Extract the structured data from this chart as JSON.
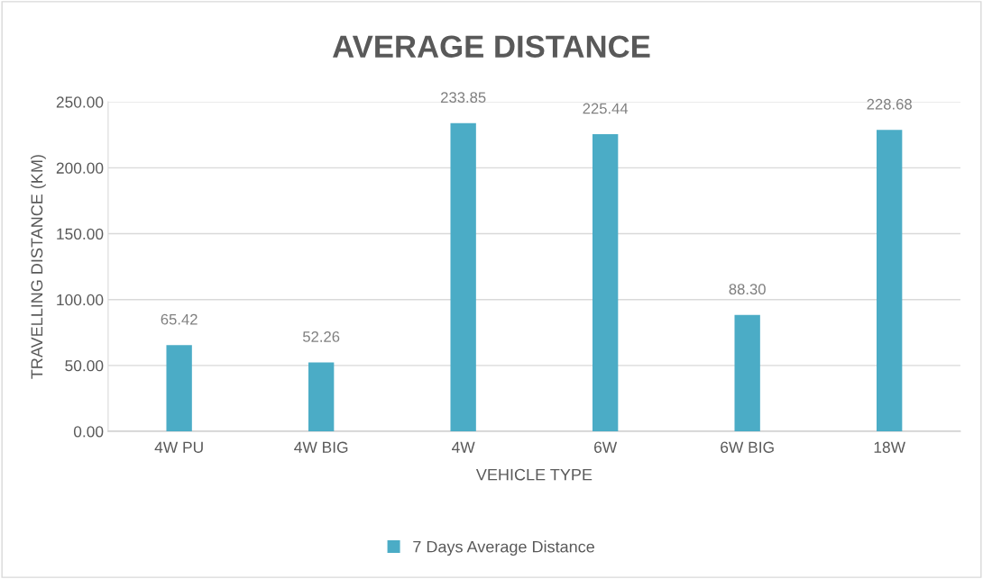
{
  "chart_data": {
    "type": "bar",
    "title": "AVERAGE DISTANCE",
    "xlabel": "VEHICLE TYPE",
    "ylabel": "TRAVELLING DISTANCE (KM)",
    "categories": [
      "4W PU",
      "4W BIG",
      "4W",
      "6W",
      "6W BIG",
      "18W"
    ],
    "series": [
      {
        "name": "7 Days Average Distance",
        "color": "#4bacc6",
        "values": [
          65.42,
          52.26,
          233.85,
          225.44,
          88.3,
          228.68
        ],
        "value_labels": [
          "65.42",
          "52.26",
          "233.85",
          "225.44",
          "88.30",
          "228.68"
        ]
      }
    ],
    "ylim": [
      0,
      250
    ],
    "yticks": [
      {
        "value": 0,
        "label": "0.00"
      },
      {
        "value": 50,
        "label": "50.00"
      },
      {
        "value": 100,
        "label": "100.00"
      },
      {
        "value": 150,
        "label": "150.00"
      },
      {
        "value": 200,
        "label": "200.00"
      },
      {
        "value": 250,
        "label": "250.00"
      }
    ],
    "grid": "y",
    "legend": "bottom"
  }
}
